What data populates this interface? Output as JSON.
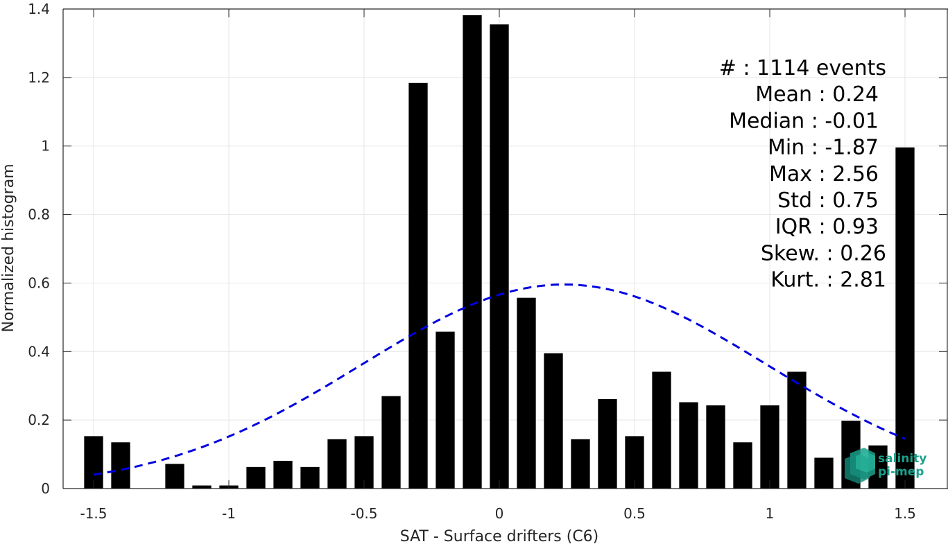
{
  "chart_data": {
    "type": "bar",
    "xlabel": "SAT - Surface drifters (C6)",
    "ylabel": "Normalized histogram",
    "xlim": [
      -1.5,
      1.5
    ],
    "ylim": [
      0,
      1.4
    ],
    "xticks": [
      "-1.5",
      "-1",
      "-0.5",
      "0",
      "0.5",
      "1",
      "1.5"
    ],
    "xtick_values": [
      -1.5,
      -1,
      -0.5,
      0,
      0.5,
      1,
      1.5
    ],
    "yticks": [
      "0",
      "0.2",
      "0.4",
      "0.6",
      "0.8",
      "1",
      "1.2",
      "1.4"
    ],
    "ytick_values": [
      0,
      0.2,
      0.4,
      0.6,
      0.8,
      1.0,
      1.2,
      1.4
    ],
    "grid": true,
    "bar_color": "#000000",
    "x": [
      -1.5,
      -1.4,
      -1.3,
      -1.2,
      -1.1,
      -1.0,
      -0.9,
      -0.8,
      -0.7,
      -0.6,
      -0.5,
      -0.4,
      -0.3,
      -0.2,
      -0.1,
      0.0,
      0.1,
      0.2,
      0.3,
      0.4,
      0.5,
      0.6,
      0.7,
      0.8,
      0.9,
      1.0,
      1.1,
      1.2,
      1.3,
      1.4,
      1.5
    ],
    "values": [
      0.153,
      0.135,
      0.0,
      0.072,
      0.009,
      0.009,
      0.063,
      0.081,
      0.063,
      0.144,
      0.153,
      0.27,
      1.184,
      0.458,
      1.382,
      1.355,
      0.557,
      0.395,
      0.144,
      0.261,
      0.153,
      0.341,
      0.252,
      0.243,
      0.135,
      0.243,
      0.341,
      0.09,
      0.198,
      0.126,
      0.996
    ],
    "fit": {
      "type": "normal",
      "mean": 0.24,
      "std": 0.75,
      "x_range": [
        -1.5,
        1.5
      ],
      "color": "#0000e0",
      "style": "dashed"
    },
    "annotations": [
      "#  : 1114 events",
      "Mean : 0.24",
      "Median : -0.01",
      "Min : -1.87",
      "Max : 2.56",
      "Std : 0.75",
      "IQR : 0.93",
      "Skew. : 0.26",
      "Kurt. : 2.81"
    ]
  },
  "logo": {
    "line1": "salinity",
    "line2": "pi-mep",
    "color": "#1aa08a"
  }
}
